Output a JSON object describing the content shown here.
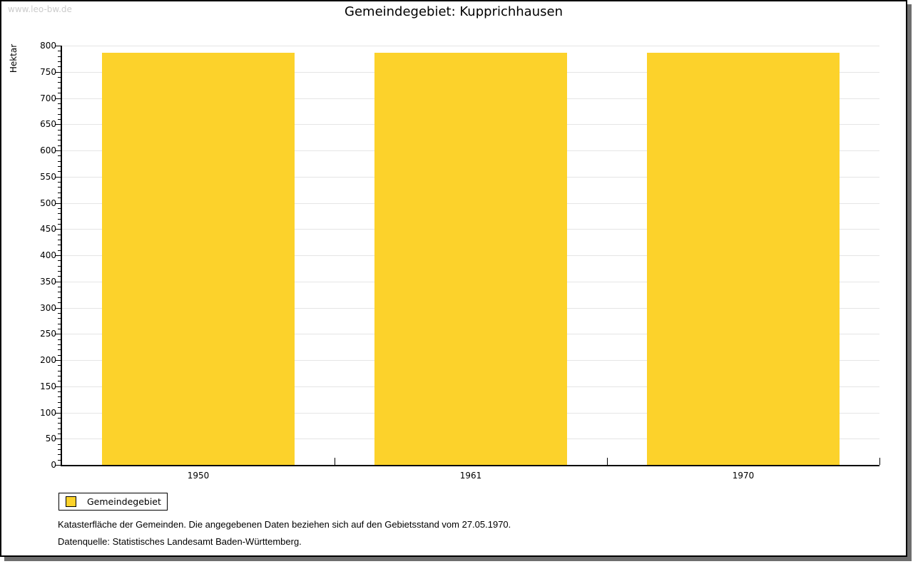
{
  "watermark": "www.leo-bw.de",
  "title": "Gemeindegebiet: Kupprichhausen",
  "chart_data": {
    "type": "bar",
    "title": "Gemeindegebiet: Kupprichhausen",
    "categories": [
      "1950",
      "1961",
      "1970"
    ],
    "series": [
      {
        "name": "Gemeindegebiet",
        "values": [
          786,
          786,
          786
        ]
      }
    ],
    "xlabel": "",
    "ylabel": "Hektar",
    "ylim": [
      0,
      800
    ],
    "ytick_major": 50,
    "ytick_minor": 10,
    "grid": "horizontal-major-only",
    "legend_position": "bottom-left",
    "bar_color": "#fcd22b"
  },
  "legend": {
    "label": "Gemeindegebiet"
  },
  "footer": {
    "line1": "Katasterfläche der Gemeinden. Die angegebenen Daten beziehen sich auf den Gebietsstand vom 27.05.1970.",
    "line2": "Datenquelle: Statistisches Landesamt Baden-Württemberg."
  },
  "colors": {
    "bar": "#fcd22b",
    "grid": "#e5e5e5",
    "axis": "#000000",
    "watermark": "#cccccc",
    "frame_shadow": "#6e6e6e",
    "background": "#ffffff"
  }
}
